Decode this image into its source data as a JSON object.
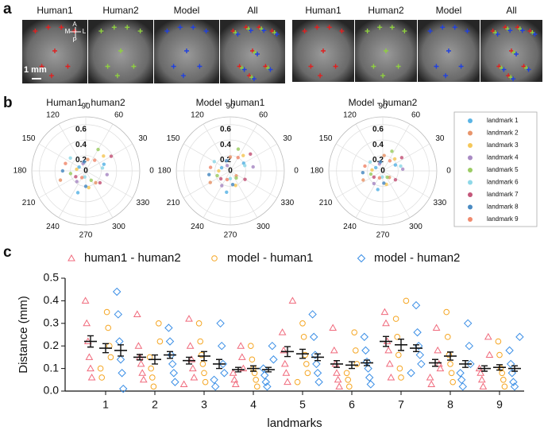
{
  "panel_labels": [
    "a",
    "b",
    "c"
  ],
  "images": {
    "headers": [
      "Human1",
      "Human2",
      "Model",
      "All"
    ],
    "orientation": {
      "a": "A",
      "m": "M",
      "l": "L",
      "p": "P"
    },
    "scale": "1 mm"
  },
  "legend": {
    "entries": [
      {
        "name": "landmark 1",
        "color": "#5ab4e5"
      },
      {
        "name": "landmark 2",
        "color": "#e8956b"
      },
      {
        "name": "landmark 3",
        "color": "#f5c85a"
      },
      {
        "name": "landmark 4",
        "color": "#a98bc4"
      },
      {
        "name": "landmark 5",
        "color": "#9ccc65"
      },
      {
        "name": "landmark 6",
        "color": "#8fd8e8"
      },
      {
        "name": "landmark 7",
        "color": "#c4577a"
      },
      {
        "name": "landmark 8",
        "color": "#4a8bc2"
      },
      {
        "name": "landmark 9",
        "color": "#f08a6e"
      }
    ]
  },
  "chart_data": [
    {
      "type": "polar_scatter",
      "title": "Human1 - human2",
      "rlim": [
        0,
        0.7
      ],
      "rticks": [
        0,
        0.2,
        0.4,
        0.6
      ],
      "thetaticks": [
        0,
        30,
        60,
        90,
        120,
        150,
        180,
        210,
        240,
        270,
        300,
        330
      ],
      "points": [
        {
          "r": [
            0.25,
            0.1,
            0.3
          ],
          "theta": [
            20,
            150,
            250
          ]
        },
        {
          "r": [
            0.15,
            0.35,
            0.2
          ],
          "theta": [
            80,
            200,
            310
          ]
        },
        {
          "r": [
            0.3,
            0.12,
            0.22
          ],
          "theta": [
            40,
            170,
            280
          ]
        },
        {
          "r": [
            0.1,
            0.18,
            0.28
          ],
          "theta": [
            110,
            230,
            350
          ]
        },
        {
          "r": [
            0.32,
            0.2,
            0.14
          ],
          "theta": [
            60,
            190,
            300
          ]
        },
        {
          "r": [
            0.22,
            0.26,
            0.08
          ],
          "theta": [
            10,
            140,
            260
          ]
        },
        {
          "r": [
            0.38,
            0.15,
            0.24
          ],
          "theta": [
            30,
            210,
            320
          ]
        },
        {
          "r": [
            0.12,
            0.3,
            0.2
          ],
          "theta": [
            100,
            180,
            270
          ]
        },
        {
          "r": [
            0.18,
            0.28,
            0.1
          ],
          "theta": [
            50,
            160,
            240
          ]
        }
      ]
    },
    {
      "type": "polar_scatter",
      "title": "Model - human1",
      "rlim": [
        0,
        0.7
      ],
      "rticks": [
        0,
        0.2,
        0.4,
        0.6
      ],
      "thetaticks": [
        0,
        30,
        60,
        90,
        120,
        150,
        180,
        210,
        240,
        270,
        300,
        330
      ],
      "points": [
        {
          "r": [
            0.2,
            0.12,
            0.28
          ],
          "theta": [
            30,
            160,
            260
          ]
        },
        {
          "r": [
            0.18,
            0.3,
            0.1
          ],
          "theta": [
            90,
            210,
            320
          ]
        },
        {
          "r": [
            0.26,
            0.15,
            0.2
          ],
          "theta": [
            50,
            180,
            290
          ]
        },
        {
          "r": [
            0.08,
            0.22,
            0.3
          ],
          "theta": [
            120,
            240,
            10
          ]
        },
        {
          "r": [
            0.3,
            0.18,
            0.12
          ],
          "theta": [
            70,
            200,
            310
          ]
        },
        {
          "r": [
            0.2,
            0.24,
            0.1
          ],
          "theta": [
            20,
            150,
            270
          ]
        },
        {
          "r": [
            0.34,
            0.16,
            0.22
          ],
          "theta": [
            40,
            220,
            330
          ]
        },
        {
          "r": [
            0.14,
            0.28,
            0.18
          ],
          "theta": [
            110,
            190,
            280
          ]
        },
        {
          "r": [
            0.2,
            0.26,
            0.12
          ],
          "theta": [
            60,
            170,
            250
          ]
        }
      ]
    },
    {
      "type": "polar_scatter",
      "title": "Model - human2",
      "rlim": [
        0,
        0.7
      ],
      "rticks": [
        0,
        0.2,
        0.4,
        0.6
      ],
      "thetaticks": [
        0,
        30,
        60,
        90,
        120,
        150,
        180,
        210,
        240,
        270,
        300,
        330
      ],
      "points": [
        {
          "r": [
            0.18,
            0.1,
            0.25
          ],
          "theta": [
            25,
            155,
            255
          ]
        },
        {
          "r": [
            0.2,
            0.28,
            0.12
          ],
          "theta": [
            85,
            205,
            315
          ]
        },
        {
          "r": [
            0.22,
            0.14,
            0.18
          ],
          "theta": [
            45,
            175,
            285
          ]
        },
        {
          "r": [
            0.1,
            0.2,
            0.26
          ],
          "theta": [
            115,
            235,
            5
          ]
        },
        {
          "r": [
            0.28,
            0.16,
            0.1
          ],
          "theta": [
            65,
            195,
            305
          ]
        },
        {
          "r": [
            0.24,
            0.2,
            0.08
          ],
          "theta": [
            15,
            145,
            265
          ]
        },
        {
          "r": [
            0.3,
            0.14,
            0.2
          ],
          "theta": [
            35,
            215,
            325
          ]
        },
        {
          "r": [
            0.12,
            0.26,
            0.16
          ],
          "theta": [
            105,
            185,
            275
          ]
        },
        {
          "r": [
            0.16,
            0.24,
            0.1
          ],
          "theta": [
            55,
            165,
            245
          ]
        }
      ]
    },
    {
      "type": "strip",
      "y_label": "Distance (mm)",
      "x_label": "landmarks",
      "categories": [
        "1",
        "2",
        "3",
        "4",
        "5",
        "6",
        "7",
        "8",
        "9"
      ],
      "ylim": [
        0,
        0.5
      ],
      "yticks": [
        {
          "value": 0,
          "label": "0.0"
        },
        0.1,
        0.2,
        0.3,
        0.4,
        0.5
      ],
      "series": [
        {
          "name": "human1 - human2",
          "color": "#f06a7c",
          "marker": "triangle",
          "means": [
            0.22,
            0.15,
            0.135,
            0.095,
            0.175,
            0.12,
            0.22,
            0.125,
            0.1
          ],
          "errors": [
            0.025,
            0.012,
            0.015,
            0.01,
            0.022,
            0.015,
            0.022,
            0.015,
            0.012
          ],
          "points": [
            [
              0.4,
              0.3,
              0.22,
              0.15,
              0.1,
              0.06
            ],
            [
              0.34,
              0.2,
              0.15,
              0.12,
              0.08,
              0.05
            ],
            [
              0.32,
              0.2,
              0.14,
              0.1,
              0.06,
              0.03
            ],
            [
              0.2,
              0.15,
              0.1,
              0.08,
              0.05,
              0.03
            ],
            [
              0.4,
              0.26,
              0.18,
              0.12,
              0.08,
              0.04
            ],
            [
              0.28,
              0.18,
              0.12,
              0.08,
              0.05,
              0.02
            ],
            [
              0.35,
              0.3,
              0.22,
              0.18,
              0.12,
              0.06
            ],
            [
              0.28,
              0.18,
              0.12,
              0.1,
              0.06,
              0.03
            ],
            [
              0.24,
              0.16,
              0.1,
              0.08,
              0.05,
              0.02
            ]
          ]
        },
        {
          "name": "model - human1",
          "color": "#f5a623",
          "marker": "circle",
          "means": [
            0.19,
            0.14,
            0.155,
            0.1,
            0.165,
            0.115,
            0.205,
            0.155,
            0.105
          ],
          "errors": [
            0.02,
            0.02,
            0.02,
            0.012,
            0.02,
            0.015,
            0.025,
            0.018,
            0.012
          ],
          "points": [
            [
              0.35,
              0.28,
              0.2,
              0.15,
              0.1,
              0.06
            ],
            [
              0.3,
              0.22,
              0.15,
              0.1,
              0.06,
              0.02
            ],
            [
              0.3,
              0.22,
              0.16,
              0.12,
              0.08,
              0.04
            ],
            [
              0.2,
              0.14,
              0.1,
              0.08,
              0.05,
              0.02
            ],
            [
              0.3,
              0.24,
              0.16,
              0.12,
              0.08,
              0.04
            ],
            [
              0.26,
              0.18,
              0.12,
              0.08,
              0.05,
              0.02
            ],
            [
              0.4,
              0.32,
              0.24,
              0.16,
              0.1,
              0.06
            ],
            [
              0.35,
              0.24,
              0.16,
              0.12,
              0.08,
              0.04
            ],
            [
              0.22,
              0.16,
              0.1,
              0.08,
              0.05,
              0.02
            ]
          ]
        },
        {
          "name": "model - human2",
          "color": "#3a8ee6",
          "marker": "diamond",
          "means": [
            0.18,
            0.16,
            0.12,
            0.095,
            0.15,
            0.125,
            0.19,
            0.12,
            0.1
          ],
          "errors": [
            0.025,
            0.015,
            0.02,
            0.01,
            0.015,
            0.012,
            0.015,
            0.015,
            0.012
          ],
          "points": [
            [
              0.44,
              0.34,
              0.22,
              0.14,
              0.08,
              0.01
            ],
            [
              0.28,
              0.22,
              0.16,
              0.12,
              0.08,
              0.04
            ],
            [
              0.3,
              0.2,
              0.12,
              0.08,
              0.05,
              0.02
            ],
            [
              0.2,
              0.14,
              0.1,
              0.07,
              0.04,
              0.02
            ],
            [
              0.34,
              0.24,
              0.16,
              0.12,
              0.08,
              0.04
            ],
            [
              0.24,
              0.18,
              0.13,
              0.1,
              0.06,
              0.03
            ],
            [
              0.38,
              0.26,
              0.2,
              0.16,
              0.12,
              0.08
            ],
            [
              0.3,
              0.2,
              0.12,
              0.08,
              0.05,
              0.02
            ],
            [
              0.24,
              0.18,
              0.12,
              0.08,
              0.04,
              0.02
            ]
          ]
        }
      ]
    }
  ]
}
